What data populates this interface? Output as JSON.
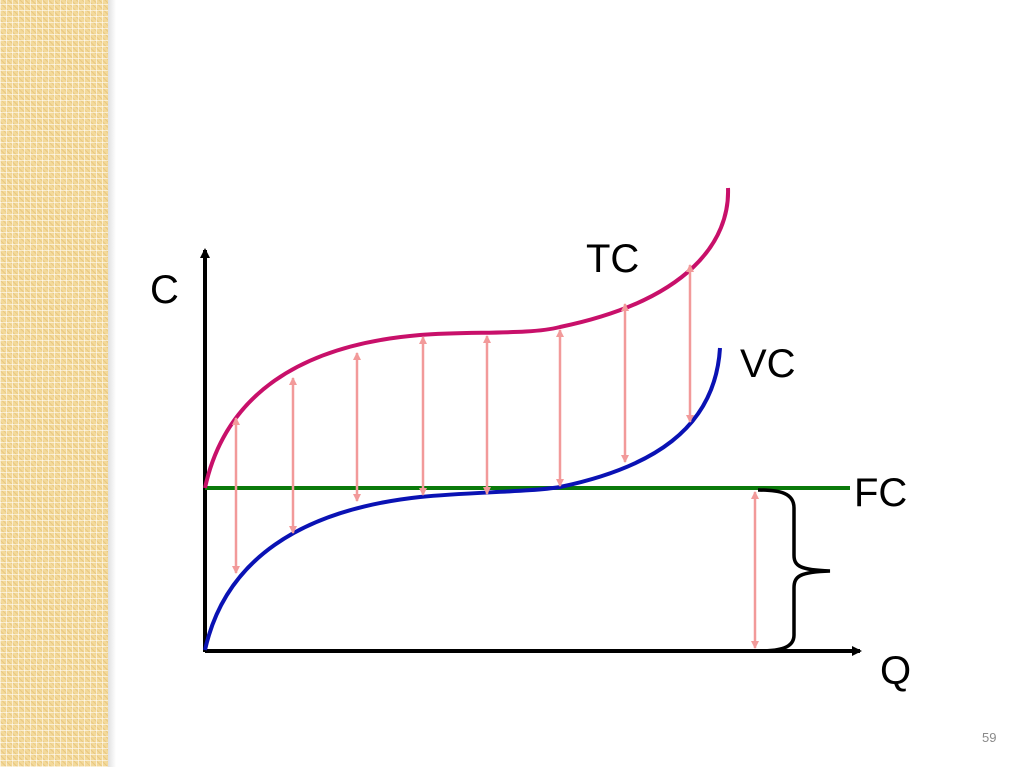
{
  "labels": {
    "c_axis": "C",
    "q_axis": "Q",
    "tc": "TC",
    "vc": "VC",
    "fc": "FC"
  },
  "colors": {
    "tc": "#c8106a",
    "vc": "#0a12b4",
    "fc": "#0a7a0a",
    "arrows": "#f29a9a",
    "axes": "#000000"
  },
  "page_number": "59"
}
